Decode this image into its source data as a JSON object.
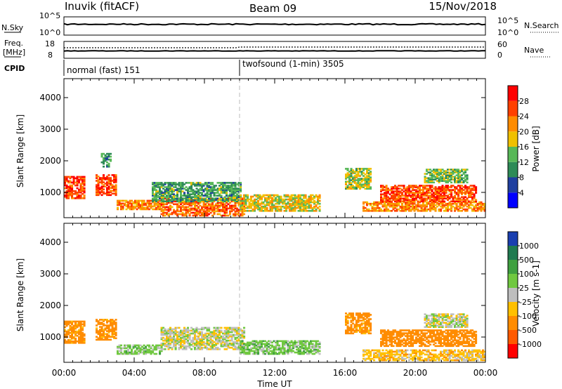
{
  "header": {
    "station": "Inuvik (fitACF)",
    "beam": "Beam 09",
    "date": "15/Nov/2018"
  },
  "aux_panels": {
    "nsky_label": "N.Sky",
    "nsky_ticks": [
      "10^5",
      "10^0"
    ],
    "nsearch_label": "N.Search",
    "nsearch_ticks": [
      "10^5",
      "10^0"
    ],
    "freq_label": "Freq.",
    "freq_unit": "[MHz]",
    "freq_ticks": [
      18,
      8
    ],
    "nave_label": "Nave",
    "nave_ticks": [
      60,
      0
    ],
    "cpid_label": "CPID",
    "cpid_modes": [
      {
        "name": "normal (fast) 151",
        "start_hour": 0
      },
      {
        "name": "twofsound (1-min) 3505",
        "start_hour": 10
      }
    ]
  },
  "colors": {
    "power_scale": [
      "#0000ff",
      "#1f3fa0",
      "#2e8b57",
      "#58b858",
      "#f0c000",
      "#ff8c00",
      "#ff4000",
      "#ff0000"
    ],
    "velocity_scale": [
      "#1a3fb0",
      "#1f7a50",
      "#3fa040",
      "#70c840",
      "#bebebe",
      "#ffc000",
      "#ff8c00",
      "#ff5a00",
      "#ff0000"
    ],
    "ground_scatter": "#bebebe"
  },
  "chart_data": [
    {
      "type": "heatmap",
      "panel": "power",
      "ylabel": "Slant Range [km]",
      "ylim": [
        200,
        4600
      ],
      "yticks": [
        1000,
        2000,
        3000,
        4000
      ],
      "colorbar_label": "Power [dB]",
      "colorbar_ticks": [
        4,
        8,
        12,
        16,
        20,
        24,
        28
      ],
      "colorbar_range": [
        0,
        32
      ],
      "scatter_regions": [
        {
          "t0": 0.0,
          "t1": 1.2,
          "r0": 800,
          "r1": 1500,
          "value": 26
        },
        {
          "t0": 1.8,
          "t1": 3.0,
          "r0": 900,
          "r1": 1550,
          "value": 26
        },
        {
          "t0": 2.1,
          "t1": 2.7,
          "r0": 1800,
          "r1": 2250,
          "value": 10
        },
        {
          "t0": 3.0,
          "t1": 5.5,
          "r0": 450,
          "r1": 750,
          "value": 22
        },
        {
          "t0": 5.5,
          "t1": 10.2,
          "r0": 250,
          "r1": 800,
          "value": 24
        },
        {
          "t0": 5.0,
          "t1": 10.0,
          "r0": 700,
          "r1": 1300,
          "value": 12
        },
        {
          "t0": 10.0,
          "t1": 14.5,
          "r0": 400,
          "r1": 900,
          "value": 18
        },
        {
          "t0": 16.0,
          "t1": 17.5,
          "r0": 1100,
          "r1": 1750,
          "value": 16
        },
        {
          "t0": 17.0,
          "t1": 24.0,
          "r0": 400,
          "r1": 700,
          "value": 22
        },
        {
          "t0": 18.0,
          "t1": 23.5,
          "r0": 700,
          "r1": 1200,
          "value": 26
        },
        {
          "t0": 20.5,
          "t1": 23.0,
          "r0": 1300,
          "r1": 1750,
          "value": 14
        }
      ]
    },
    {
      "type": "heatmap",
      "panel": "velocity",
      "xlabel": "Time UT",
      "ylabel": "Slant Range [km]",
      "ylim": [
        200,
        4600
      ],
      "yticks": [
        1000,
        2000,
        3000,
        4000
      ],
      "xlim": [
        0,
        24
      ],
      "xticks": [
        "00:00",
        "04:00",
        "08:00",
        "12:00",
        "16:00",
        "20:00",
        "00:00"
      ],
      "colorbar_label": "Velocity [m s-1]",
      "colorbar_ticks": [
        "1000",
        "500",
        "100",
        "25",
        "-25",
        "-100",
        "-500",
        "-1000"
      ],
      "scatter_regions": [
        {
          "t0": 0.0,
          "t1": 1.2,
          "r0": 800,
          "r1": 1500,
          "value": -150
        },
        {
          "t0": 1.8,
          "t1": 3.0,
          "r0": 900,
          "r1": 1550,
          "value": -150
        },
        {
          "t0": 3.0,
          "t1": 5.5,
          "r0": 450,
          "r1": 750,
          "value": 60
        },
        {
          "t0": 5.5,
          "t1": 10.2,
          "r0": 600,
          "r1": 1300,
          "value": 0
        },
        {
          "t0": 10.0,
          "t1": 14.5,
          "r0": 450,
          "r1": 900,
          "value": 60
        },
        {
          "t0": 16.0,
          "t1": 17.5,
          "r0": 1100,
          "r1": 1750,
          "value": -150
        },
        {
          "t0": 17.0,
          "t1": 24.0,
          "r0": 250,
          "r1": 600,
          "value": -60
        },
        {
          "t0": 18.0,
          "t1": 23.5,
          "r0": 700,
          "r1": 1200,
          "value": -300
        },
        {
          "t0": 20.5,
          "t1": 23.0,
          "r0": 1300,
          "r1": 1750,
          "value": 0
        }
      ]
    }
  ]
}
